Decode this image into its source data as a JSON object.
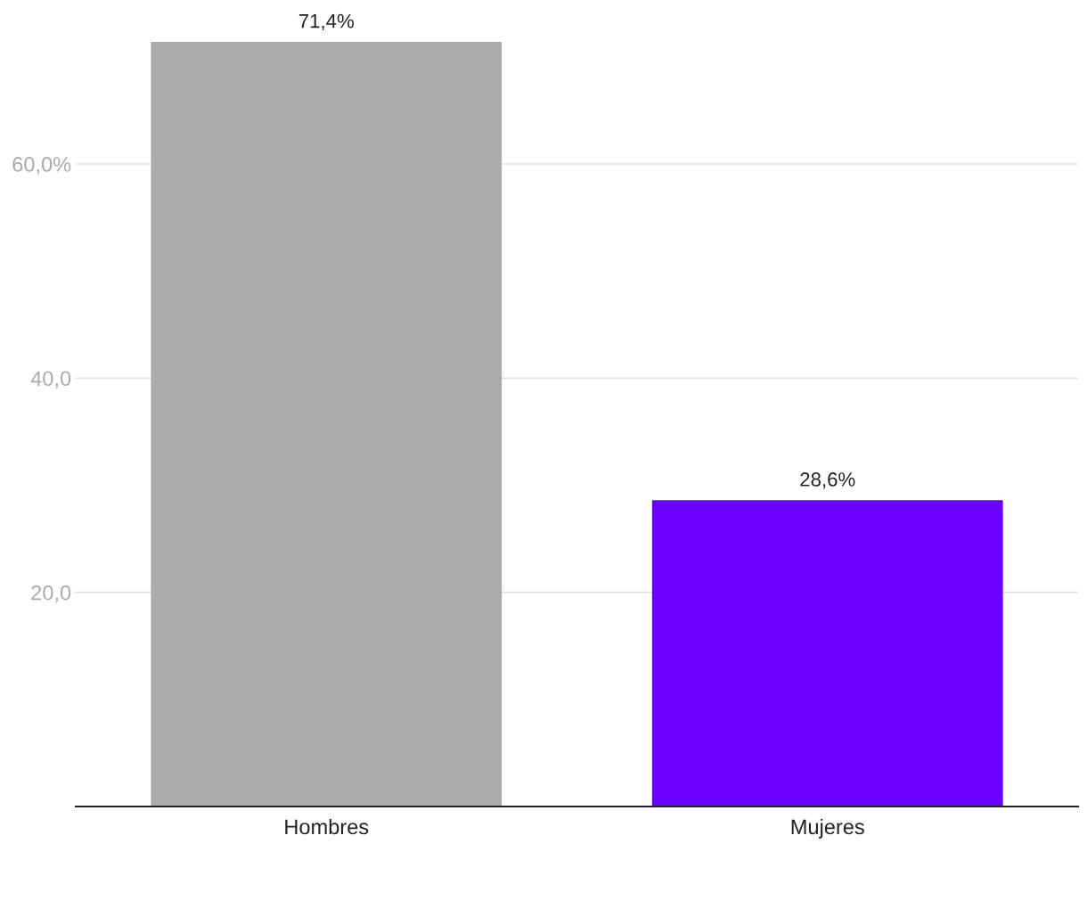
{
  "chart_data": {
    "type": "bar",
    "categories": [
      "Hombres",
      "Mujeres"
    ],
    "values": [
      71.4,
      28.6
    ],
    "colors": [
      "#aaaaaa",
      "#6a00ff"
    ],
    "value_labels": [
      "71,4%",
      "28,6%"
    ],
    "ylim": [
      0,
      71.4
    ],
    "yticks": [
      {
        "value": 20,
        "label": "20,0"
      },
      {
        "value": 40,
        "label": "40,0"
      },
      {
        "value": 60,
        "label": "60,0%"
      }
    ],
    "grid": "y",
    "legend": false
  }
}
